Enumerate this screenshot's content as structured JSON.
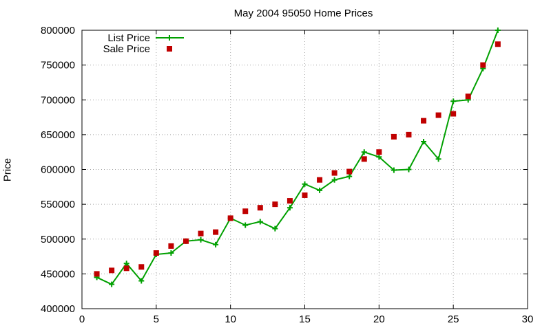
{
  "chart_data": {
    "type": "line",
    "title": "May 2004 95050 Home Prices",
    "xlabel": "",
    "ylabel": "Price",
    "xlim": [
      0,
      30
    ],
    "ylim": [
      400000,
      800000
    ],
    "x_ticks": [
      "0",
      "5",
      "10",
      "15",
      "20",
      "25",
      "30"
    ],
    "y_ticks": [
      "400000",
      "450000",
      "500000",
      "550000",
      "600000",
      "650000",
      "700000",
      "750000",
      "800000"
    ],
    "grid": true,
    "legend_position": "top-left",
    "x": [
      1,
      2,
      3,
      4,
      5,
      6,
      7,
      8,
      9,
      10,
      11,
      12,
      13,
      14,
      15,
      16,
      17,
      18,
      19,
      20,
      21,
      22,
      23,
      24,
      25,
      26,
      27,
      28
    ],
    "series": [
      {
        "name": "List Price",
        "style": "line+plus",
        "color": "#00a000",
        "values": [
          445000,
          435000,
          465000,
          440000,
          478000,
          480000,
          497000,
          499000,
          492000,
          530000,
          520000,
          525000,
          515000,
          545000,
          579000,
          570000,
          585000,
          590000,
          625000,
          618000,
          599000,
          600000,
          640000,
          615000,
          698000,
          700000,
          745000,
          800000
        ]
      },
      {
        "name": "Sale Price",
        "style": "square",
        "color": "#c00000",
        "values": [
          450000,
          455000,
          458000,
          460000,
          480000,
          490000,
          497000,
          508000,
          510000,
          530000,
          540000,
          545000,
          550000,
          555000,
          563000,
          585000,
          595000,
          597000,
          615000,
          625000,
          647000,
          650000,
          670000,
          678000,
          680000,
          705000,
          750000,
          780000
        ]
      }
    ]
  }
}
